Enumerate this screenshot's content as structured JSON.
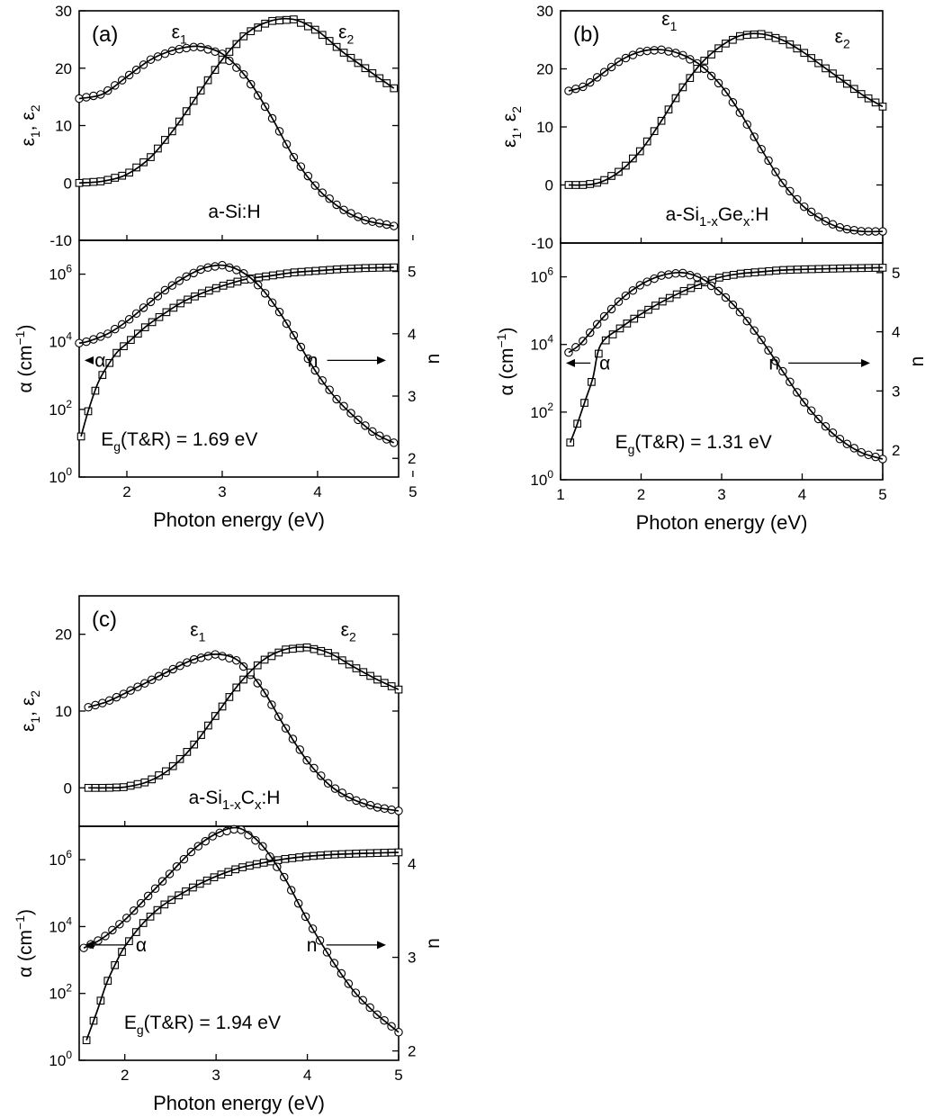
{
  "chart_data": [
    {
      "panel": "(a)",
      "material_html": "a-Si:H",
      "gap_annotation": {
        "prefix": "E",
        "sub": "g",
        "suffix": "(T&R) = 1.69 eV"
      },
      "xlabel": "Photon energy (eV)",
      "xlim": [
        1.5,
        4.85
      ],
      "xticks": [
        "2",
        "3",
        "4",
        "5"
      ],
      "top": {
        "type": "line",
        "ylabel": {
          "base1": "ε",
          "sub1": "1",
          "sep": ", ",
          "base2": "ε",
          "sub2": "2"
        },
        "ylim": [
          -10,
          30
        ],
        "yticks": [
          "-10",
          "0",
          "10",
          "20",
          "30"
        ],
        "series": [
          {
            "name": "ε1",
            "marker": "circle",
            "x": [
              1.5,
              1.75,
              2.0,
              2.25,
              2.5,
              2.75,
              3.0,
              3.25,
              3.5,
              3.75,
              4.0,
              4.25,
              4.5,
              4.8
            ],
            "y": [
              14.7,
              15.5,
              18.5,
              21.5,
              23.2,
              23.8,
              22.5,
              18.5,
              12.0,
              4.5,
              -1.0,
              -4.5,
              -6.5,
              -7.5
            ]
          },
          {
            "name": "ε2",
            "marker": "square",
            "x": [
              1.5,
              1.75,
              2.0,
              2.25,
              2.5,
              2.75,
              3.0,
              3.25,
              3.5,
              3.75,
              4.0,
              4.25,
              4.5,
              4.8
            ],
            "y": [
              0.0,
              0.3,
              1.5,
              4.5,
              9.5,
              15.5,
              21.5,
              26.0,
              28.2,
              28.5,
              26.5,
              23.0,
              20.0,
              16.5
            ]
          }
        ],
        "labels": [
          {
            "base": "ε",
            "sub": "1",
            "x": 2.55,
            "y": 25.2
          },
          {
            "base": "ε",
            "sub": "2",
            "x": 4.3,
            "y": 25.2
          }
        ]
      },
      "bottom": {
        "type": "line",
        "ylabel": {
          "text": "α (cm",
          "sup": "−1",
          "close": ")"
        },
        "y_scale": "log",
        "ylim_log10": [
          0,
          7
        ],
        "yticks": [
          {
            "base": "10",
            "exp": "0"
          },
          {
            "base": "10",
            "exp": "2"
          },
          {
            "base": "10",
            "exp": "4"
          },
          {
            "base": "10",
            "exp": "6"
          }
        ],
        "y2label": "n",
        "y2lim": [
          1.7,
          5.5
        ],
        "y2ticks": [
          "2",
          "3",
          "4",
          "5"
        ],
        "series": [
          {
            "name": "α",
            "axis": "left",
            "marker": "square",
            "x": [
              1.52,
              1.6,
              1.7,
              1.8,
              1.9,
              2.0,
              2.2,
              2.4,
              2.6,
              2.8,
              3.0,
              3.25,
              3.5,
              3.75,
              4.0,
              4.25,
              4.5,
              4.8
            ],
            "y_log10": [
              1.2,
              2.0,
              2.8,
              3.3,
              3.7,
              3.95,
              4.45,
              4.85,
              5.2,
              5.45,
              5.65,
              5.85,
              5.95,
              6.05,
              6.1,
              6.15,
              6.18,
              6.2
            ]
          },
          {
            "name": "n",
            "axis": "right",
            "marker": "circle",
            "x": [
              1.5,
              1.6,
              1.8,
              2.0,
              2.2,
              2.4,
              2.6,
              2.8,
              3.0,
              3.2,
              3.4,
              3.6,
              3.8,
              4.0,
              4.2,
              4.4,
              4.6,
              4.8
            ],
            "y": [
              3.85,
              3.88,
              4.0,
              4.2,
              4.45,
              4.7,
              4.9,
              5.05,
              5.1,
              5.0,
              4.75,
              4.35,
              3.85,
              3.35,
              2.95,
              2.65,
              2.4,
              2.25
            ]
          }
        ],
        "labels": [
          {
            "text": "α",
            "x": 1.72,
            "y_log10": 3.45,
            "arrow": "left"
          },
          {
            "text": "n",
            "x": 3.95,
            "y_log10": 3.45,
            "arrow": "right"
          }
        ]
      }
    },
    {
      "panel": "(b)",
      "material_html": "a-Si<sub>1-x</sub>Ge<sub>x</sub>:H",
      "gap_annotation": {
        "prefix": "E",
        "sub": "g",
        "suffix": "(T&R) = 1.31 eV"
      },
      "xlabel": "Photon energy (eV)",
      "xlim": [
        1.0,
        5.0
      ],
      "xticks": [
        "1",
        "2",
        "3",
        "4",
        "5"
      ],
      "top": {
        "type": "line",
        "ylabel": {
          "base1": "ε",
          "sub1": "1",
          "sep": ", ",
          "base2": "ε",
          "sub2": "2"
        },
        "ylim": [
          -10,
          30
        ],
        "yticks": [
          "-10",
          "0",
          "10",
          "20",
          "30"
        ],
        "series": [
          {
            "name": "ε1",
            "marker": "circle",
            "x": [
              1.1,
              1.3,
              1.5,
              1.75,
              2.0,
              2.25,
              2.5,
              2.75,
              3.0,
              3.25,
              3.5,
              3.75,
              4.0,
              4.25,
              4.5,
              4.75,
              5.0
            ],
            "y": [
              16.2,
              17.0,
              19.0,
              21.5,
              23.0,
              23.3,
              22.5,
              20.5,
              17.0,
              12.0,
              6.0,
              0.5,
              -3.5,
              -6.0,
              -7.5,
              -8.0,
              -8.0
            ]
          },
          {
            "name": "ε2",
            "marker": "square",
            "x": [
              1.1,
              1.3,
              1.5,
              1.75,
              2.0,
              2.25,
              2.5,
              2.75,
              3.0,
              3.25,
              3.5,
              3.75,
              4.0,
              4.25,
              4.5,
              4.75,
              5.0
            ],
            "y": [
              0.0,
              0.0,
              0.5,
              2.5,
              6.0,
              11.0,
              16.5,
              21.0,
              24.0,
              25.8,
              26.0,
              25.0,
              23.0,
              20.5,
              18.0,
              15.5,
              13.5
            ]
          }
        ],
        "labels": [
          {
            "base": "ε",
            "sub": "1",
            "x": 2.35,
            "y": 27.5
          },
          {
            "base": "ε",
            "sub": "2",
            "x": 4.5,
            "y": 24.5
          }
        ]
      },
      "bottom": {
        "type": "line",
        "ylabel": {
          "text": "α (cm",
          "sup": "−1",
          "close": ")"
        },
        "y_scale": "log",
        "ylim_log10": [
          0,
          7
        ],
        "yticks": [
          {
            "base": "10",
            "exp": "0"
          },
          {
            "base": "10",
            "exp": "2"
          },
          {
            "base": "10",
            "exp": "4"
          },
          {
            "base": "10",
            "exp": "6"
          }
        ],
        "y2label": "n",
        "y2lim": [
          1.5,
          5.5
        ],
        "y2ticks": [
          "2",
          "3",
          "4",
          "5"
        ],
        "series": [
          {
            "name": "α",
            "axis": "left",
            "marker": "square",
            "x": [
              1.12,
              1.2,
              1.3,
              1.4,
              1.5,
              1.75,
              2.0,
              2.25,
              2.5,
              2.75,
              3.0,
              3.25,
              3.5,
              3.75,
              4.0,
              4.5,
              5.0
            ],
            "y_log10": [
              1.1,
              1.6,
              2.3,
              3.0,
              4.0,
              4.5,
              4.9,
              5.25,
              5.55,
              5.8,
              6.0,
              6.1,
              6.15,
              6.2,
              6.22,
              6.25,
              6.27
            ]
          },
          {
            "name": "n",
            "axis": "right",
            "marker": "circle",
            "x": [
              1.1,
              1.25,
              1.5,
              1.75,
              2.0,
              2.25,
              2.5,
              2.75,
              3.0,
              3.25,
              3.5,
              3.75,
              4.0,
              4.25,
              4.5,
              4.75,
              5.0
            ],
            "y": [
              3.65,
              3.8,
              4.2,
              4.55,
              4.8,
              4.95,
              5.0,
              4.9,
              4.65,
              4.3,
              3.85,
              3.35,
              2.85,
              2.45,
              2.15,
              1.95,
              1.85
            ]
          }
        ],
        "labels": [
          {
            "text": "α",
            "x": 1.55,
            "y_log10": 3.45,
            "arrow": "left"
          },
          {
            "text": "n",
            "x": 3.65,
            "y_log10": 3.45,
            "arrow": "right"
          }
        ]
      }
    },
    {
      "panel": "(c)",
      "material_html": "a-Si<sub>1-x</sub>C<sub>x</sub>:H",
      "gap_annotation": {
        "prefix": "E",
        "sub": "g",
        "suffix": "(T&R) = 1.94 eV"
      },
      "xlabel": "Photon energy (eV)",
      "xlim": [
        1.5,
        5.0
      ],
      "xticks": [
        "2",
        "3",
        "4",
        "5"
      ],
      "top": {
        "type": "line",
        "ylabel": {
          "base1": "ε",
          "sub1": "1",
          "sep": ", ",
          "base2": "ε",
          "sub2": "2"
        },
        "ylim": [
          -5,
          25
        ],
        "yticks": [
          "0",
          "10",
          "20"
        ],
        "series": [
          {
            "name": "ε1",
            "marker": "circle",
            "x": [
              1.6,
              1.8,
              2.0,
              2.25,
              2.5,
              2.75,
              3.0,
              3.25,
              3.5,
              3.75,
              4.0,
              4.25,
              4.5,
              4.75,
              5.0
            ],
            "y": [
              10.5,
              11.2,
              12.3,
              13.8,
              15.3,
              16.7,
              17.4,
              16.5,
              13.0,
              8.0,
              3.5,
              0.3,
              -1.5,
              -2.5,
              -3.0
            ]
          },
          {
            "name": "ε2",
            "marker": "square",
            "x": [
              1.6,
              1.8,
              2.0,
              2.25,
              2.5,
              2.75,
              3.0,
              3.25,
              3.5,
              3.75,
              4.0,
              4.25,
              4.5,
              4.75,
              5.0
            ],
            "y": [
              0.0,
              0.0,
              0.1,
              0.8,
              2.5,
              5.5,
              9.5,
              13.5,
              16.5,
              18.0,
              18.3,
              17.5,
              15.8,
              14.2,
              12.8
            ]
          }
        ],
        "labels": [
          {
            "base": "ε",
            "sub": "1",
            "x": 2.8,
            "y": 19.8
          },
          {
            "base": "ε",
            "sub": "2",
            "x": 4.45,
            "y": 19.8
          }
        ]
      },
      "bottom": {
        "type": "line",
        "ylabel": {
          "text": "α (cm",
          "sup": "−1",
          "close": ")"
        },
        "y_scale": "log",
        "ylim_log10": [
          0,
          7
        ],
        "yticks": [
          {
            "base": "10",
            "exp": "0"
          },
          {
            "base": "10",
            "exp": "2"
          },
          {
            "base": "10",
            "exp": "4"
          },
          {
            "base": "10",
            "exp": "6"
          }
        ],
        "y2label": "n",
        "y2lim": [
          1.9,
          4.4
        ],
        "y2ticks": [
          "2",
          "3",
          "4"
        ],
        "series": [
          {
            "name": "α",
            "axis": "left",
            "marker": "square",
            "x": [
              1.58,
              1.7,
              1.8,
              1.9,
              2.0,
              2.2,
              2.4,
              2.6,
              2.8,
              3.0,
              3.25,
              3.5,
              3.75,
              4.0,
              4.25,
              4.5,
              4.75,
              5.0
            ],
            "y_log10": [
              0.6,
              1.5,
              2.3,
              2.9,
              3.4,
              4.1,
              4.6,
              4.95,
              5.25,
              5.5,
              5.75,
              5.9,
              6.02,
              6.1,
              6.15,
              6.18,
              6.2,
              6.22
            ]
          },
          {
            "name": "n",
            "axis": "right",
            "marker": "circle",
            "x": [
              1.55,
              1.75,
              2.0,
              2.25,
              2.5,
              2.75,
              3.0,
              3.25,
              3.5,
              3.75,
              4.0,
              4.25,
              4.5,
              4.75,
              5.0
            ],
            "y": [
              3.1,
              3.2,
              3.4,
              3.65,
              3.9,
              4.15,
              4.32,
              4.38,
              4.2,
              3.85,
              3.4,
              3.0,
              2.65,
              2.4,
              2.2
            ]
          }
        ],
        "labels": [
          {
            "text": "α",
            "x": 2.18,
            "y_log10": 3.45,
            "arrow": "left"
          },
          {
            "text": "n",
            "x": 4.05,
            "y_log10": 3.45,
            "arrow": "right"
          }
        ]
      }
    }
  ]
}
